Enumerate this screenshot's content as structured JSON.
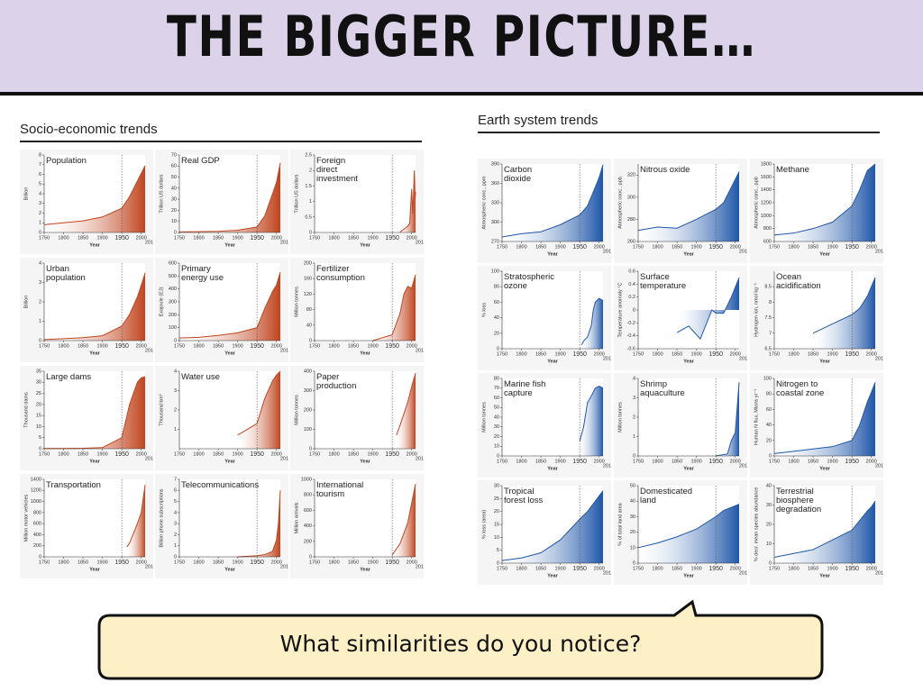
{
  "title": "THE BIGGER PICTURE…",
  "sections": [
    "Socio-economic trends",
    "Earth system trends"
  ],
  "question": "What similarities do you notice?",
  "chart_data": [
    {
      "type": "area",
      "title": "Population",
      "ylabel": "Billion",
      "xlabel": "Year",
      "color": "#c0441e",
      "x": [
        1750,
        1800,
        1850,
        1900,
        1950,
        1970,
        1990,
        2000,
        2010
      ],
      "values": [
        0.8,
        1.0,
        1.2,
        1.6,
        2.5,
        3.7,
        5.3,
        6.1,
        6.9
      ],
      "xlim": [
        1750,
        2010
      ],
      "xticks": [
        1750,
        1800,
        1850,
        1900,
        1950,
        2000,
        2010
      ],
      "ylim": [
        0,
        8
      ],
      "yticks": [
        0,
        1,
        2,
        3,
        4,
        5,
        6,
        7,
        8
      ],
      "vline": 1950
    },
    {
      "type": "area",
      "title": "Real GDP",
      "ylabel": "Trillion US dollars",
      "xlabel": "Year",
      "color": "#c0441e",
      "x": [
        1750,
        1800,
        1850,
        1900,
        1950,
        1970,
        1990,
        2000,
        2010
      ],
      "values": [
        0.5,
        0.7,
        1,
        2,
        5,
        15,
        35,
        45,
        63
      ],
      "xlim": [
        1750,
        2010
      ],
      "xticks": [
        1750,
        1800,
        1850,
        1900,
        1950,
        2000,
        2010
      ],
      "ylim": [
        0,
        70
      ],
      "yticks": [
        0,
        10,
        20,
        30,
        40,
        50,
        60,
        70
      ],
      "vline": 1950
    },
    {
      "type": "area",
      "title": "Foreign direct investment",
      "ylabel": "Trillion US dollars",
      "xlabel": "Year",
      "color": "#c0441e",
      "x": [
        1970,
        1990,
        1995,
        2000,
        2003,
        2007,
        2009,
        2010
      ],
      "values": [
        0.01,
        0.2,
        0.3,
        1.4,
        0.6,
        2.0,
        1.1,
        1.3
      ],
      "xlim": [
        1750,
        2010
      ],
      "xticks": [
        1750,
        1800,
        1850,
        1900,
        1950,
        2000,
        2010
      ],
      "ylim": [
        0,
        2.5
      ],
      "yticks": [
        0,
        0.5,
        1,
        1.5,
        2,
        2.5
      ],
      "vline": 1950
    },
    {
      "type": "area",
      "title": "Urban population",
      "ylabel": "Billion",
      "xlabel": "Year",
      "color": "#c0441e",
      "x": [
        1750,
        1800,
        1850,
        1900,
        1950,
        1970,
        1990,
        2000,
        2010
      ],
      "values": [
        0.05,
        0.1,
        0.15,
        0.25,
        0.75,
        1.35,
        2.25,
        2.85,
        3.5
      ],
      "xlim": [
        1750,
        2010
      ],
      "xticks": [
        1750,
        1800,
        1850,
        1900,
        1950,
        2000,
        2010
      ],
      "ylim": [
        0,
        4
      ],
      "yticks": [
        0,
        1,
        2,
        3,
        4
      ],
      "vline": 1950
    },
    {
      "type": "area",
      "title": "Primary energy use",
      "ylabel": "Exajoule (EJ)",
      "xlabel": "Year",
      "color": "#c0441e",
      "x": [
        1750,
        1800,
        1850,
        1900,
        1950,
        1970,
        1990,
        2000,
        2010
      ],
      "values": [
        20,
        25,
        40,
        60,
        100,
        250,
        380,
        430,
        530
      ],
      "xlim": [
        1750,
        2010
      ],
      "xticks": [
        1750,
        1800,
        1850,
        1900,
        1950,
        2000,
        2010
      ],
      "ylim": [
        0,
        600
      ],
      "yticks": [
        0,
        100,
        200,
        300,
        400,
        500,
        600
      ],
      "vline": 1950
    },
    {
      "type": "area",
      "title": "Fertilizer consumption",
      "ylabel": "Million tonnes",
      "xlabel": "Year",
      "color": "#c0441e",
      "x": [
        1900,
        1950,
        1970,
        1980,
        1990,
        2000,
        2010
      ],
      "values": [
        0,
        15,
        70,
        120,
        140,
        135,
        170
      ],
      "xlim": [
        1750,
        2010
      ],
      "xticks": [
        1750,
        1800,
        1850,
        1900,
        1950,
        2000,
        2010
      ],
      "ylim": [
        0,
        200
      ],
      "yticks": [
        0,
        40,
        80,
        120,
        160,
        200
      ],
      "vline": 1950
    },
    {
      "type": "area",
      "title": "Large dams",
      "ylabel": "Thousand dams",
      "xlabel": "Year",
      "color": "#c0441e",
      "x": [
        1750,
        1800,
        1850,
        1900,
        1950,
        1970,
        1990,
        2000,
        2010
      ],
      "values": [
        0.1,
        0.1,
        0.2,
        0.5,
        5,
        20,
        30,
        32,
        32.5
      ],
      "xlim": [
        1750,
        2010
      ],
      "xticks": [
        1750,
        1800,
        1850,
        1900,
        1950,
        2000,
        2010
      ],
      "ylim": [
        0,
        35
      ],
      "yticks": [
        0,
        5,
        10,
        15,
        20,
        25,
        30,
        35
      ],
      "vline": 1950
    },
    {
      "type": "area",
      "title": "Water use",
      "ylabel": "Thousand km³",
      "xlabel": "Year",
      "color": "#c0441e",
      "x": [
        1900,
        1950,
        1970,
        1990,
        2000,
        2010
      ],
      "values": [
        0.7,
        1.3,
        2.6,
        3.5,
        3.8,
        4.0
      ],
      "xlim": [
        1750,
        2010
      ],
      "xticks": [
        1750,
        1800,
        1850,
        1900,
        1950,
        2000,
        2010
      ],
      "ylim": [
        0,
        4
      ],
      "yticks": [
        1,
        2,
        3,
        4
      ],
      "vline": 1950
    },
    {
      "type": "area",
      "title": "Paper production",
      "ylabel": "Million tonnes",
      "xlabel": "Year",
      "color": "#c0441e",
      "x": [
        1961,
        1970,
        1990,
        2000,
        2010
      ],
      "values": [
        70,
        120,
        240,
        320,
        390
      ],
      "xlim": [
        1750,
        2010
      ],
      "xticks": [
        1750,
        1800,
        1850,
        1900,
        1950,
        2000,
        2010
      ],
      "ylim": [
        0,
        400
      ],
      "yticks": [
        0,
        100,
        200,
        300,
        400
      ],
      "vline": 1950
    },
    {
      "type": "area",
      "title": "Transportation",
      "ylabel": "Million motor vehicles",
      "xlabel": "Year",
      "color": "#c0441e",
      "x": [
        1963,
        1970,
        1990,
        2000,
        2010
      ],
      "values": [
        180,
        250,
        600,
        800,
        1300
      ],
      "xlim": [
        1750,
        2010
      ],
      "xticks": [
        1750,
        1800,
        1850,
        1900,
        1950,
        2000,
        2010
      ],
      "ylim": [
        0,
        1400
      ],
      "yticks": [
        0,
        200,
        400,
        600,
        800,
        1000,
        1200,
        1400
      ],
      "vline": 1950
    },
    {
      "type": "area",
      "title": "Telecommunications",
      "ylabel": "Billion phone subscriptions",
      "xlabel": "Year",
      "color": "#c0441e",
      "x": [
        1900,
        1950,
        1970,
        1990,
        2000,
        2005,
        2010
      ],
      "values": [
        0,
        0.1,
        0.2,
        0.5,
        1.5,
        3,
        6
      ],
      "xlim": [
        1750,
        2010
      ],
      "xticks": [
        1750,
        1800,
        1850,
        1900,
        1950,
        2000,
        2010
      ],
      "ylim": [
        0,
        7
      ],
      "yticks": [
        0,
        1,
        2,
        3,
        4,
        5,
        6,
        7
      ],
      "vline": 1950
    },
    {
      "type": "area",
      "title": "International tourism",
      "ylabel": "Million arrivals",
      "xlabel": "Year",
      "color": "#c0441e",
      "x": [
        1950,
        1970,
        1990,
        2000,
        2010
      ],
      "values": [
        25,
        170,
        440,
        690,
        940
      ],
      "xlim": [
        1750,
        2010
      ],
      "xticks": [
        1750,
        1800,
        1850,
        1900,
        1950,
        2000,
        2010
      ],
      "ylim": [
        0,
        1000
      ],
      "yticks": [
        0,
        200,
        400,
        600,
        800,
        1000
      ],
      "vline": 1950
    },
    {
      "type": "area",
      "title": "Carbon dioxide",
      "ylabel": "Atmospheric conc., ppm",
      "xlabel": "Year",
      "color": "#1f56a8",
      "x": [
        1750,
        1800,
        1850,
        1900,
        1950,
        1970,
        1990,
        2000,
        2010
      ],
      "values": [
        277,
        282,
        285,
        296,
        311,
        325,
        354,
        369,
        389
      ],
      "xlim": [
        1750,
        2010
      ],
      "xticks": [
        1750,
        1800,
        1850,
        1900,
        1950,
        2000,
        2010
      ],
      "ylim": [
        270,
        390
      ],
      "yticks": [
        270,
        300,
        330,
        360,
        390
      ],
      "vline": 1950
    },
    {
      "type": "area",
      "title": "Nitrous oxide",
      "ylabel": "Atmospheric conc., ppb",
      "xlabel": "Year",
      "color": "#1f56a8",
      "x": [
        1750,
        1800,
        1850,
        1900,
        1950,
        1970,
        1990,
        2000,
        2010
      ],
      "values": [
        270,
        273,
        272,
        280,
        289,
        295,
        309,
        316,
        323
      ],
      "xlim": [
        1750,
        2010
      ],
      "xticks": [
        1750,
        1800,
        1850,
        1900,
        1950,
        2000,
        2010
      ],
      "ylim": [
        260,
        330
      ],
      "yticks": [
        260,
        280,
        300,
        320
      ],
      "vline": 1950
    },
    {
      "type": "area",
      "title": "Methane",
      "ylabel": "Atmospheric conc., ppb",
      "xlabel": "Year",
      "color": "#1f56a8",
      "x": [
        1750,
        1800,
        1850,
        1900,
        1950,
        1970,
        1990,
        2000,
        2010
      ],
      "values": [
        700,
        730,
        800,
        900,
        1150,
        1400,
        1700,
        1750,
        1800
      ],
      "xlim": [
        1750,
        2010
      ],
      "xticks": [
        1750,
        1800,
        1850,
        1900,
        1950,
        2000,
        2010
      ],
      "ylim": [
        600,
        1800
      ],
      "yticks": [
        600,
        800,
        1000,
        1200,
        1400,
        1600,
        1800
      ],
      "vline": 1950
    },
    {
      "type": "area",
      "title": "Stratospheric ozone",
      "ylabel": "% loss",
      "xlabel": "Year",
      "color": "#1f56a8",
      "x": [
        1955,
        1960,
        1970,
        1980,
        1985,
        1990,
        2000,
        2010
      ],
      "values": [
        5,
        10,
        15,
        30,
        50,
        60,
        65,
        62
      ],
      "xlim": [
        1750,
        2010
      ],
      "xticks": [
        1750,
        1800,
        1850,
        1900,
        1950,
        2000,
        2010
      ],
      "ylim": [
        0,
        100
      ],
      "yticks": [
        0,
        20,
        40,
        60,
        80,
        100
      ],
      "vline": 1950
    },
    {
      "type": "area",
      "title": "Surface temperature",
      "ylabel": "Temperature anomaly °C",
      "xlabel": "Year",
      "color": "#1f56a8",
      "x": [
        1850,
        1880,
        1910,
        1940,
        1950,
        1970,
        1990,
        2000,
        2010
      ],
      "values": [
        -0.35,
        -0.25,
        -0.45,
        0.0,
        -0.05,
        -0.05,
        0.2,
        0.35,
        0.5
      ],
      "xlim": [
        1750,
        2010
      ],
      "xticks": [
        1750,
        1800,
        1850,
        1900,
        1950,
        2000,
        2010
      ],
      "ylim": [
        -0.6,
        0.6
      ],
      "yticks": [
        -0.6,
        -0.4,
        -0.2,
        0,
        0.2,
        0.4,
        0.6
      ],
      "vline": 1950
    },
    {
      "type": "area",
      "title": "Ocean acidification",
      "ylabel": "Hydrogen ion, nmol kg⁻¹",
      "xlabel": "Year",
      "color": "#1f56a8",
      "x": [
        1850,
        1900,
        1950,
        1970,
        1990,
        2000,
        2010
      ],
      "values": [
        7.0,
        7.3,
        7.6,
        7.8,
        8.2,
        8.5,
        8.8
      ],
      "xlim": [
        1750,
        2010
      ],
      "xticks": [
        1750,
        1800,
        1850,
        1900,
        1950,
        2000,
        2010
      ],
      "ylim": [
        6.5,
        9
      ],
      "yticks": [
        6.5,
        7,
        7.5,
        8,
        8.5
      ],
      "vline": 1950
    },
    {
      "type": "area",
      "title": "Marine fish capture",
      "ylabel": "Million tonnes",
      "xlabel": "Year",
      "color": "#1f56a8",
      "x": [
        1950,
        1960,
        1970,
        1980,
        1990,
        2000,
        2010
      ],
      "values": [
        15,
        30,
        55,
        62,
        70,
        72,
        70
      ],
      "xlim": [
        1750,
        2010
      ],
      "xticks": [
        1750,
        1800,
        1850,
        1900,
        1950,
        2000,
        2010
      ],
      "ylim": [
        0,
        80
      ],
      "yticks": [
        0,
        10,
        20,
        30,
        40,
        50,
        60,
        70,
        80
      ],
      "vline": 1950
    },
    {
      "type": "area",
      "title": "Shrimp aquaculture",
      "ylabel": "Million tonnes",
      "xlabel": "Year",
      "color": "#1f56a8",
      "x": [
        1950,
        1980,
        1990,
        2000,
        2010
      ],
      "values": [
        0,
        0.1,
        0.8,
        1.2,
        3.8
      ],
      "xlim": [
        1750,
        2010
      ],
      "xticks": [
        1750,
        1800,
        1850,
        1900,
        1950,
        2000,
        2010
      ],
      "ylim": [
        0,
        4
      ],
      "yticks": [
        0,
        1,
        2,
        3,
        4
      ],
      "vline": 1950
    },
    {
      "type": "area",
      "title": "Nitrogen to coastal zone",
      "ylabel": "Human N flux, Mtons yr⁻¹",
      "xlabel": "Year",
      "color": "#1f56a8",
      "x": [
        1750,
        1800,
        1850,
        1900,
        1950,
        1970,
        1990,
        2000,
        2010
      ],
      "values": [
        3,
        6,
        9,
        12,
        20,
        40,
        70,
        82,
        95
      ],
      "xlim": [
        1750,
        2010
      ],
      "xticks": [
        1750,
        1800,
        1850,
        1900,
        1950,
        2000,
        2010
      ],
      "ylim": [
        0,
        100
      ],
      "yticks": [
        0,
        20,
        40,
        60,
        80,
        100
      ],
      "vline": 1950
    },
    {
      "type": "area",
      "title": "Tropical forest loss",
      "ylabel": "% loss (area)",
      "xlabel": "Year",
      "color": "#1f56a8",
      "x": [
        1750,
        1800,
        1850,
        1900,
        1950,
        1970,
        1990,
        2000,
        2010
      ],
      "values": [
        1,
        2,
        4,
        9,
        17,
        20,
        24,
        26,
        28
      ],
      "xlim": [
        1750,
        2010
      ],
      "xticks": [
        1750,
        1800,
        1850,
        1900,
        1950,
        2000,
        2010
      ],
      "ylim": [
        0,
        30
      ],
      "yticks": [
        0,
        5,
        10,
        15,
        20,
        25,
        30
      ],
      "vline": 1950
    },
    {
      "type": "area",
      "title": "Domesticated land",
      "ylabel": "% of total land area",
      "xlabel": "Year",
      "color": "#1f56a8",
      "x": [
        1750,
        1800,
        1850,
        1900,
        1950,
        1970,
        1990,
        2000,
        2010
      ],
      "values": [
        10,
        13,
        17,
        22,
        30,
        34,
        36,
        37,
        38
      ],
      "xlim": [
        1750,
        2010
      ],
      "xticks": [
        1750,
        1800,
        1850,
        1900,
        1950,
        2000,
        2010
      ],
      "ylim": [
        0,
        50
      ],
      "yticks": [
        0,
        10,
        20,
        30,
        40,
        50
      ],
      "vline": 1950
    },
    {
      "type": "area",
      "title": "Terrestrial biosphere degradation",
      "ylabel": "% decr. mean species abundance",
      "xlabel": "Year",
      "color": "#1f56a8",
      "x": [
        1750,
        1800,
        1850,
        1900,
        1950,
        1970,
        1990,
        2000,
        2010
      ],
      "values": [
        3,
        5,
        7,
        12,
        17,
        22,
        27,
        29,
        32
      ],
      "xlim": [
        1750,
        2010
      ],
      "xticks": [
        1750,
        1800,
        1850,
        1900,
        1950,
        2000,
        2010
      ],
      "ylim": [
        0,
        40
      ],
      "yticks": [
        0,
        10,
        20,
        30,
        40
      ],
      "vline": 1950
    }
  ]
}
